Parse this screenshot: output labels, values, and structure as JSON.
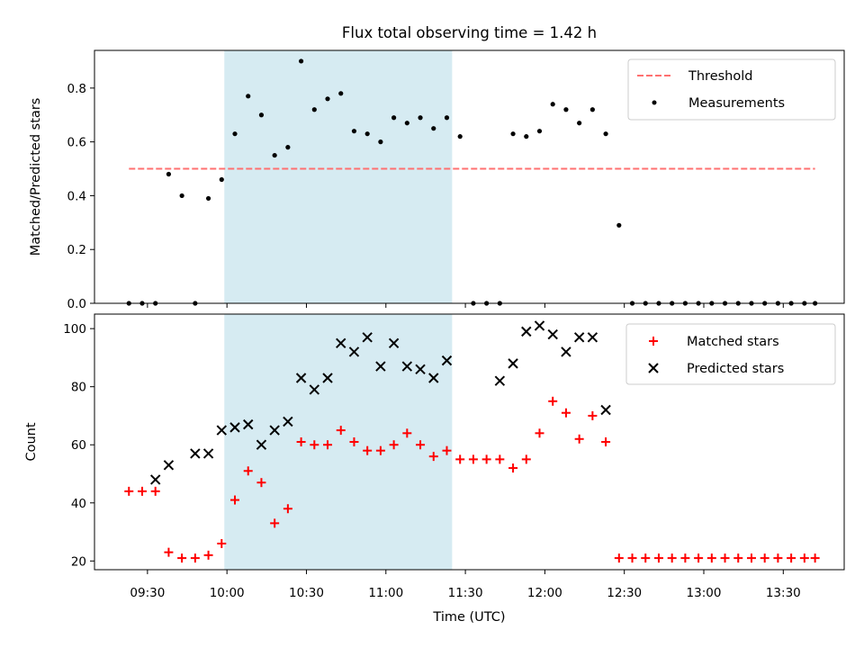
{
  "title": "Flux total observing time = 1.42 h",
  "colors": {
    "threshold": "#ff7070",
    "measurements": "#000000",
    "matched": "#ff0000",
    "predicted": "#000000",
    "span": "#add8e6"
  },
  "chart_data": [
    {
      "type": "scatter",
      "ylabel": "Matched/Predicted stars",
      "xlim": [
        "09:10",
        "13:53"
      ],
      "ylim": [
        0,
        0.94
      ],
      "yticks": [
        "0.0",
        "0.2",
        "0.4",
        "0.6",
        "0.8"
      ],
      "highlight_span": {
        "start": "09:59",
        "end": "11:25"
      },
      "legend": {
        "position": "upper-right",
        "entries": [
          "Threshold",
          "Measurements"
        ]
      },
      "threshold": {
        "name": "Threshold",
        "value": 0.5,
        "x_start": "09:23",
        "x_end": "13:42",
        "style": "dashed"
      },
      "series": [
        {
          "name": "Measurements",
          "marker": "dot",
          "x": [
            "09:23",
            "09:28",
            "09:33",
            "09:38",
            "09:43",
            "09:48",
            "09:53",
            "09:58",
            "10:03",
            "10:08",
            "10:13",
            "10:18",
            "10:23",
            "10:28",
            "10:33",
            "10:38",
            "10:43",
            "10:48",
            "10:53",
            "10:58",
            "11:03",
            "11:08",
            "11:13",
            "11:18",
            "11:23",
            "11:28",
            "11:33",
            "11:38",
            "11:43",
            "11:48",
            "11:53",
            "11:58",
            "12:03",
            "12:08",
            "12:13",
            "12:18",
            "12:23",
            "12:28",
            "12:33",
            "12:38",
            "12:43",
            "12:48",
            "12:53",
            "12:58",
            "13:03",
            "13:08",
            "13:13",
            "13:18",
            "13:23",
            "13:28",
            "13:33",
            "13:38",
            "13:42"
          ],
          "y": [
            0.0,
            0.0,
            0.0,
            0.48,
            0.4,
            0.0,
            0.39,
            0.46,
            0.63,
            0.77,
            0.7,
            0.55,
            0.58,
            0.9,
            0.72,
            0.76,
            0.78,
            0.64,
            0.63,
            0.6,
            0.69,
            0.67,
            0.69,
            0.65,
            0.69,
            0.62,
            0.0,
            0.0,
            0.0,
            0.63,
            0.62,
            0.64,
            0.74,
            0.72,
            0.67,
            0.72,
            0.63,
            0.29,
            0.0,
            0.0,
            0.0,
            0.0,
            0.0,
            0.0,
            0.0,
            0.0,
            0.0,
            0.0,
            0.0,
            0.0,
            0.0,
            0.0,
            0.0
          ]
        }
      ]
    },
    {
      "type": "scatter",
      "xlabel": "Time (UTC)",
      "ylabel": "Count",
      "xlim": [
        "09:10",
        "13:53"
      ],
      "ylim": [
        17,
        105
      ],
      "yticks": [
        "20",
        "40",
        "60",
        "80",
        "100"
      ],
      "xticks": [
        "09:30",
        "10:00",
        "10:30",
        "11:00",
        "11:30",
        "12:00",
        "12:30",
        "13:00",
        "13:30"
      ],
      "highlight_span": {
        "start": "09:59",
        "end": "11:25"
      },
      "legend": {
        "position": "upper-right",
        "entries": [
          "Matched stars",
          "Predicted stars"
        ]
      },
      "series": [
        {
          "name": "Matched stars",
          "marker": "plus",
          "x": [
            "09:23",
            "09:28",
            "09:33",
            "09:38",
            "09:43",
            "09:48",
            "09:53",
            "09:58",
            "10:03",
            "10:08",
            "10:13",
            "10:18",
            "10:23",
            "10:28",
            "10:33",
            "10:38",
            "10:43",
            "10:48",
            "10:53",
            "10:58",
            "11:03",
            "11:08",
            "11:13",
            "11:18",
            "11:23",
            "11:28",
            "11:33",
            "11:38",
            "11:43",
            "11:48",
            "11:53",
            "11:58",
            "12:03",
            "12:08",
            "12:13",
            "12:18",
            "12:23",
            "12:28",
            "12:33",
            "12:38",
            "12:43",
            "12:48",
            "12:53",
            "12:58",
            "13:03",
            "13:08",
            "13:13",
            "13:18",
            "13:23",
            "13:28",
            "13:33",
            "13:38",
            "13:42"
          ],
          "y": [
            44,
            44,
            44,
            23,
            21,
            21,
            22,
            26,
            41,
            51,
            47,
            33,
            38,
            61,
            60,
            60,
            65,
            61,
            58,
            58,
            60,
            64,
            60,
            56,
            58,
            55,
            55,
            55,
            55,
            52,
            55,
            64,
            75,
            71,
            62,
            70,
            61,
            21,
            21,
            21,
            21,
            21,
            21,
            21,
            21,
            21,
            21,
            21,
            21,
            21,
            21,
            21,
            21
          ]
        },
        {
          "name": "Predicted stars",
          "marker": "x",
          "x": [
            "09:33",
            "09:38",
            "09:48",
            "09:53",
            "09:58",
            "10:03",
            "10:08",
            "10:13",
            "10:18",
            "10:23",
            "10:28",
            "10:33",
            "10:38",
            "10:43",
            "10:48",
            "10:53",
            "10:58",
            "11:03",
            "11:08",
            "11:13",
            "11:18",
            "11:23",
            "11:43",
            "11:48",
            "11:53",
            "11:58",
            "12:03",
            "12:08",
            "12:13",
            "12:18",
            "12:23"
          ],
          "y": [
            48,
            53,
            57,
            57,
            65,
            66,
            67,
            60,
            65,
            68,
            83,
            79,
            83,
            95,
            92,
            97,
            87,
            95,
            87,
            86,
            83,
            89,
            82,
            88,
            99,
            101,
            98,
            92,
            97,
            97,
            72
          ]
        }
      ]
    }
  ]
}
